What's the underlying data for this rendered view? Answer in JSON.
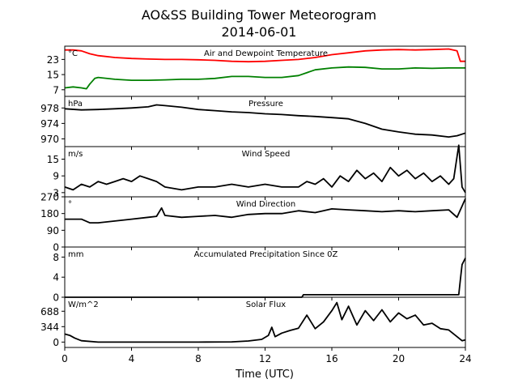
{
  "title": "AO&SS Building Tower Meteorogram",
  "subtitle": "2014-06-01",
  "xlabel": "Time (UTC)",
  "chart_data": {
    "type": "line",
    "title": "AO&SS Building Tower Meteorogram",
    "subtitle": "2014-06-01",
    "xlabel": "Time (UTC)",
    "xlim": [
      0,
      24
    ],
    "xticks": [
      0,
      4,
      8,
      12,
      16,
      20,
      24
    ],
    "grid": false,
    "panels": [
      {
        "title": "Air and Dewpoint Temperature",
        "unit": "°C",
        "ylim": [
          3.5,
          30
        ],
        "yticks": [
          7,
          15,
          23
        ],
        "series": [
          {
            "color": "#ff0000",
            "x": [
              0,
              0.5,
              1,
              1.5,
              2,
              3,
              4,
              5,
              6,
              7,
              8,
              9,
              10,
              11,
              12,
              13,
              14,
              15,
              16,
              17,
              18,
              19,
              20,
              21,
              22,
              23,
              23.5,
              23.7,
              24
            ],
            "values": [
              28,
              28,
              27.5,
              26,
              25,
              24,
              23.5,
              23.2,
              23,
              23,
              22.8,
              22.5,
              22,
              21.8,
              22,
              22.5,
              23,
              24,
              25.5,
              26.5,
              27.5,
              28,
              28.2,
              28,
              28.2,
              28.5,
              27.5,
              22,
              22
            ]
          },
          {
            "color": "#008000",
            "x": [
              0,
              0.5,
              1,
              1.3,
              1.5,
              1.8,
              2,
              3,
              4,
              5,
              6,
              7,
              8,
              9,
              10,
              11,
              12,
              13,
              14,
              15,
              16,
              17,
              18,
              19,
              20,
              21,
              22,
              23,
              24
            ],
            "values": [
              8,
              8.5,
              8,
              7.5,
              10,
              13,
              13.5,
              12.5,
              12,
              12,
              12.2,
              12.5,
              12.5,
              13,
              14,
              14,
              13.5,
              13.5,
              14.5,
              17.5,
              18.5,
              19,
              18.8,
              18,
              18,
              18.5,
              18.3,
              18.5,
              18.5
            ]
          }
        ]
      },
      {
        "title": "Pressure",
        "unit": "hPa",
        "ylim": [
          968,
          981
        ],
        "yticks": [
          970,
          974,
          978
        ],
        "series": [
          {
            "color": "#000000",
            "x": [
              0,
              1,
              2,
              3,
              4,
              5,
              5.5,
              6,
              7,
              8,
              9,
              10,
              11,
              12,
              13,
              14,
              15,
              16,
              17,
              18,
              19,
              20,
              21,
              22,
              23,
              23.5,
              24
            ],
            "values": [
              977.8,
              977.5,
              977.6,
              977.8,
              978.0,
              978.3,
              978.8,
              978.6,
              978.2,
              977.6,
              977.3,
              977.0,
              976.8,
              976.5,
              976.3,
              976.0,
              975.8,
              975.5,
              975.2,
              974.0,
              972.5,
              971.8,
              971.2,
              971.0,
              970.5,
              970.8,
              971.5
            ]
          }
        ]
      },
      {
        "title": "Wind Speed",
        "unit": "m/s",
        "ylim": [
          1.5,
          19.5
        ],
        "yticks": [
          3,
          9,
          15
        ],
        "series": [
          {
            "color": "#000000",
            "x": [
              0,
              0.5,
              1,
              1.5,
              2,
              2.5,
              3,
              3.5,
              4,
              4.5,
              5,
              5.5,
              6,
              7,
              8,
              9,
              10,
              11,
              12,
              13,
              14,
              14.5,
              15,
              15.5,
              16,
              16.5,
              17,
              17.5,
              18,
              18.5,
              19,
              19.5,
              20,
              20.5,
              21,
              21.5,
              22,
              22.5,
              23,
              23.3,
              23.6,
              23.8,
              24
            ],
            "values": [
              5,
              4,
              6,
              5,
              7,
              6,
              7,
              8,
              7,
              9,
              8,
              7,
              5,
              4,
              5,
              5,
              6,
              5,
              6,
              5,
              5,
              7,
              6,
              8,
              5,
              9,
              7,
              11,
              8,
              10,
              7,
              12,
              9,
              11,
              8,
              10,
              7,
              9,
              6,
              8,
              20,
              5,
              3
            ]
          }
        ]
      },
      {
        "title": "Wind Direction",
        "unit": "°",
        "ylim": [
          0,
          270
        ],
        "yticks": [
          0,
          90,
          180,
          270
        ],
        "series": [
          {
            "color": "#000000",
            "x": [
              0,
              1,
              1.5,
              2,
              3,
              4,
              5,
              5.5,
              5.8,
              6,
              7,
              8,
              9,
              10,
              11,
              12,
              13,
              14,
              15,
              16,
              17,
              18,
              19,
              20,
              21,
              22,
              23,
              23.5,
              24
            ],
            "values": [
              150,
              150,
              130,
              130,
              140,
              150,
              160,
              165,
              210,
              170,
              160,
              165,
              170,
              160,
              175,
              180,
              180,
              195,
              185,
              205,
              200,
              195,
              190,
              195,
              190,
              195,
              200,
              160,
              260
            ]
          }
        ]
      },
      {
        "title": "Accumulated Precipitation Since 0Z",
        "unit": "mm",
        "ylim": [
          0,
          10
        ],
        "yticks": [
          0,
          4,
          8
        ],
        "series": [
          {
            "color": "#000000",
            "x": [
              0,
              14.2,
              14.3,
              23.6,
              23.7,
              23.8,
              24
            ],
            "values": [
              0,
              0,
              0.5,
              0.5,
              3.5,
              6.5,
              7.8
            ]
          }
        ]
      },
      {
        "title": "Solar Flux",
        "unit": "W/m^2",
        "ylim": [
          -120,
          1000
        ],
        "yticks": [
          0,
          344,
          688
        ],
        "series": [
          {
            "color": "#000000",
            "x": [
              0,
              0.3,
              0.6,
              1,
              2,
              4,
              6,
              8,
              10,
              11,
              11.8,
              12.2,
              12.4,
              12.6,
              13,
              13.5,
              14,
              14.5,
              15,
              15.5,
              16,
              16.3,
              16.6,
              17,
              17.5,
              18,
              18.5,
              19,
              19.5,
              20,
              20.5,
              21,
              21.5,
              22,
              22.5,
              23,
              23.5,
              23.8,
              24
            ],
            "values": [
              180,
              150,
              90,
              30,
              0,
              0,
              0,
              0,
              5,
              25,
              60,
              150,
              330,
              120,
              200,
              260,
              310,
              600,
              300,
              450,
              700,
              880,
              500,
              800,
              380,
              700,
              480,
              720,
              450,
              650,
              520,
              600,
              380,
              420,
              300,
              270,
              120,
              30,
              50
            ]
          }
        ]
      }
    ]
  }
}
